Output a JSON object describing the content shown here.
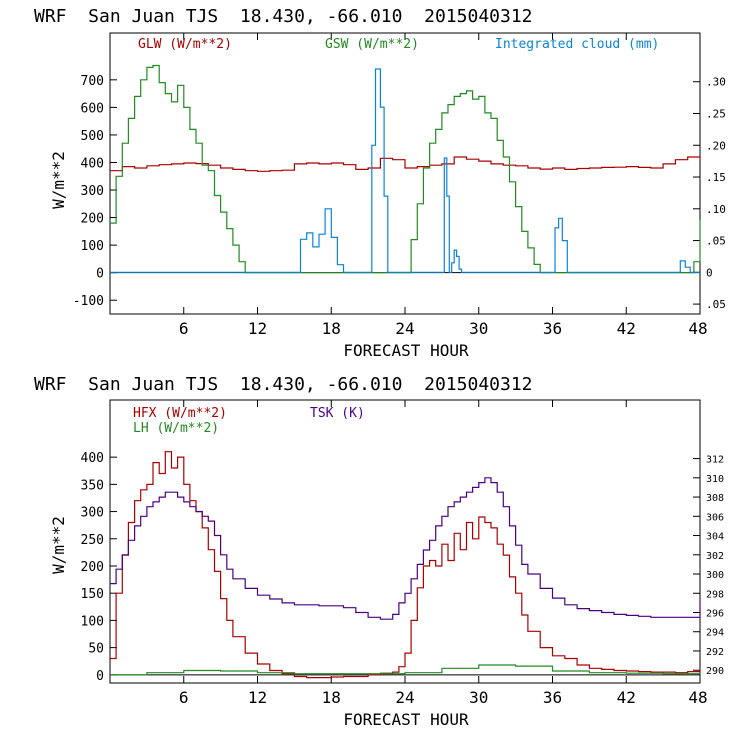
{
  "chart_data": [
    {
      "type": "line",
      "title": "WRF  San Juan TJS  18.430, -66.010  2015040312",
      "xlabel": "FORECAST HOUR",
      "ylabel": "W/m**2",
      "xlim": [
        0,
        48
      ],
      "ylim": [
        -150,
        870
      ],
      "xticks": [
        6,
        12,
        18,
        24,
        30,
        36,
        42,
        48
      ],
      "yticks": [
        -100,
        0,
        100,
        200,
        300,
        400,
        500,
        600,
        700
      ],
      "ytick_labels": [
        "-100",
        "0",
        "100",
        "200",
        "300",
        "400",
        "500",
        "600",
        "700"
      ],
      "y2lim": [
        -0.0656,
        0.3767
      ],
      "y2ticks": [
        -0.05,
        0,
        0.05,
        0.1,
        0.15,
        0.2,
        0.25,
        0.3
      ],
      "y2tick_labels": [
        ".05",
        "0",
        ".05",
        ".10",
        ".15",
        ".20",
        ".25",
        ".30"
      ],
      "legend": [
        {
          "label": "GLW (W/m**2)",
          "color": "#aa0000"
        },
        {
          "label": "GSW (W/m**2)",
          "color": "#228b22"
        },
        {
          "label": "Integrated cloud (mm)",
          "color": "#0b84d8"
        }
      ],
      "series": [
        {
          "name": "GLW",
          "axis": "left",
          "color": "#aa0000",
          "x": [
            0,
            1,
            2,
            3,
            4,
            5,
            6,
            7,
            8,
            9,
            10,
            11,
            12,
            13,
            14,
            15,
            16,
            17,
            18,
            19,
            20,
            21,
            22,
            23,
            24,
            25,
            26,
            27,
            28,
            29,
            30,
            31,
            32,
            33,
            34,
            35,
            36,
            37,
            38,
            39,
            40,
            41,
            42,
            43,
            44,
            45,
            46,
            47,
            48
          ],
          "y": [
            370,
            385,
            380,
            388,
            392,
            395,
            398,
            396,
            390,
            380,
            375,
            370,
            368,
            370,
            372,
            395,
            398,
            395,
            398,
            392,
            375,
            380,
            415,
            410,
            380,
            385,
            390,
            395,
            420,
            412,
            405,
            395,
            390,
            388,
            380,
            376,
            380,
            375,
            378,
            380,
            382,
            383,
            385,
            382,
            380,
            395,
            410,
            420,
            408
          ]
        },
        {
          "name": "GSW",
          "axis": "left",
          "color": "#228b22",
          "x": [
            0,
            0.5,
            1,
            1.5,
            2,
            2.5,
            3,
            3.5,
            4,
            4.5,
            5,
            5.5,
            6,
            6.5,
            7,
            7.5,
            8,
            8.5,
            9,
            9.5,
            10,
            10.5,
            11,
            24,
            24.5,
            25,
            25.5,
            26,
            26.5,
            27,
            27.5,
            28,
            28.5,
            29,
            29.5,
            30,
            30.5,
            31,
            31.5,
            32,
            32.5,
            33,
            33.5,
            34,
            34.5,
            35,
            47,
            47.5,
            48
          ],
          "y": [
            180,
            350,
            470,
            560,
            640,
            700,
            745,
            752,
            690,
            650,
            620,
            680,
            600,
            520,
            470,
            390,
            370,
            280,
            220,
            160,
            100,
            40,
            0,
            0,
            120,
            250,
            380,
            470,
            520,
            580,
            610,
            640,
            650,
            660,
            630,
            640,
            580,
            560,
            480,
            420,
            330,
            240,
            150,
            90,
            30,
            0,
            0,
            40,
            190
          ]
        },
        {
          "name": "Integrated cloud",
          "axis": "right",
          "color": "#0b84d8",
          "x": [
            0,
            15,
            15.5,
            16,
            16.5,
            17,
            17.5,
            18,
            18.5,
            19,
            21,
            21.3,
            21.6,
            22,
            22.3,
            22.6,
            27,
            27.2,
            27.4,
            27.6,
            27.8,
            28,
            28.2,
            28.4,
            28.6,
            29,
            36,
            36.2,
            36.5,
            36.8,
            37.2,
            46,
            46.4,
            46.8,
            47.2,
            48
          ],
          "y": [
            0,
            0,
            0.052,
            0.062,
            0.04,
            0.06,
            0.1,
            0.055,
            0.012,
            0,
            0,
            0.2,
            0.32,
            0.26,
            0.12,
            0,
            0,
            0.18,
            0.12,
            0,
            0.015,
            0.035,
            0.025,
            0.005,
            0,
            0,
            0,
            0.07,
            0.085,
            0.05,
            0,
            0,
            0.018,
            0.008,
            0,
            0
          ]
        }
      ]
    },
    {
      "type": "line",
      "title": "WRF  San Juan TJS  18.430, -66.010  2015040312",
      "xlabel": "FORECAST HOUR",
      "ylabel": "W/m**2",
      "xlim": [
        0,
        48
      ],
      "ylim": [
        -15,
        505
      ],
      "xticks": [
        6,
        12,
        18,
        24,
        30,
        36,
        42,
        48
      ],
      "yticks": [
        0,
        50,
        100,
        150,
        200,
        250,
        300,
        350,
        400
      ],
      "ytick_labels": [
        "0",
        "50",
        "100",
        "150",
        "200",
        "250",
        "300",
        "350",
        "400"
      ],
      "y2lim": [
        288.67,
        318.09
      ],
      "y2ticks": [
        290,
        292,
        294,
        296,
        298,
        300,
        302,
        304,
        306,
        308,
        310,
        312
      ],
      "y2tick_labels": [
        "290",
        "292",
        "294",
        "296",
        "298",
        "300",
        "302",
        "304",
        "306",
        "308",
        "310",
        "312"
      ],
      "legend": [
        {
          "label": "HFX (W/m**2)",
          "color": "#aa0000"
        },
        {
          "label": "LH  (W/m**2)",
          "color": "#228b22"
        },
        {
          "label": "TSK (K)",
          "color": "#4b0082"
        }
      ],
      "series": [
        {
          "name": "HFX",
          "axis": "left",
          "color": "#aa0000",
          "x": [
            0,
            0.5,
            1,
            1.5,
            2,
            2.5,
            3,
            3.5,
            4,
            4.5,
            5,
            5.5,
            6,
            6.5,
            7,
            7.5,
            8,
            8.5,
            9,
            9.5,
            10,
            11,
            12,
            13,
            14,
            15,
            16,
            17,
            18,
            19,
            20,
            21,
            22,
            23,
            23.5,
            24,
            24.5,
            25,
            25.5,
            26,
            26.5,
            27,
            27.5,
            28,
            28.5,
            29,
            29.5,
            30,
            30.5,
            31,
            31.5,
            32,
            32.5,
            33,
            33.5,
            34,
            35,
            36,
            37,
            38,
            39,
            40,
            41,
            42,
            43,
            44,
            45,
            46,
            47,
            48
          ],
          "y": [
            30,
            150,
            220,
            280,
            320,
            340,
            350,
            390,
            370,
            410,
            380,
            400,
            350,
            320,
            300,
            270,
            230,
            190,
            140,
            100,
            70,
            40,
            20,
            8,
            2,
            -3,
            -5,
            -5,
            -4,
            -3,
            -3,
            0,
            3,
            5,
            15,
            40,
            100,
            160,
            200,
            210,
            200,
            240,
            210,
            260,
            230,
            280,
            250,
            290,
            280,
            270,
            240,
            220,
            180,
            150,
            110,
            80,
            50,
            35,
            30,
            18,
            12,
            10,
            8,
            7,
            6,
            5,
            5,
            4,
            6,
            15
          ]
        },
        {
          "name": "LH",
          "axis": "left",
          "color": "#228b22",
          "x": [
            0,
            3,
            6,
            9,
            12,
            15,
            18,
            21,
            24,
            27,
            30,
            33,
            36,
            39,
            42,
            45,
            48
          ],
          "y": [
            0,
            4,
            8,
            7,
            4,
            2,
            2,
            2,
            4,
            12,
            18,
            16,
            7,
            4,
            3,
            2,
            3
          ],
          "width": 1.2
        },
        {
          "name": "TSK",
          "axis": "right",
          "color": "#4b0082",
          "x": [
            0,
            0.5,
            1,
            1.5,
            2,
            2.5,
            3,
            3.5,
            4,
            4.5,
            5,
            5.5,
            6,
            6.5,
            7,
            7.5,
            8,
            8.5,
            9,
            9.5,
            10,
            11,
            12,
            13,
            14,
            15,
            16,
            17,
            18,
            19,
            20,
            21,
            22,
            23,
            23.5,
            24,
            24.5,
            25,
            25.5,
            26,
            26.5,
            27,
            27.5,
            28,
            28.5,
            29,
            29.5,
            30,
            30.5,
            31,
            31.5,
            32,
            32.5,
            33,
            33.5,
            34,
            35,
            36,
            37,
            38,
            39,
            40,
            41,
            42,
            43,
            44,
            45,
            46,
            47,
            48
          ],
          "y": [
            299,
            300.5,
            302,
            303.5,
            305,
            306,
            307,
            307.5,
            308,
            308.5,
            308.5,
            308,
            307.5,
            307,
            306.5,
            306,
            305.5,
            304,
            302,
            300.5,
            299.5,
            298.5,
            297.8,
            297.4,
            297,
            296.8,
            296.8,
            296.7,
            296.7,
            296.5,
            296,
            295.5,
            295.3,
            295.8,
            297,
            298,
            299.5,
            301,
            302.5,
            303.5,
            305,
            306,
            307,
            307.5,
            308,
            308.5,
            309,
            309.5,
            310,
            309.5,
            308.5,
            307,
            305,
            303,
            301,
            300,
            298.5,
            297.5,
            296.8,
            296.4,
            296.2,
            296,
            295.8,
            295.7,
            295.6,
            295.5,
            295.5,
            295.5,
            295.5,
            297.5
          ]
        }
      ]
    }
  ]
}
